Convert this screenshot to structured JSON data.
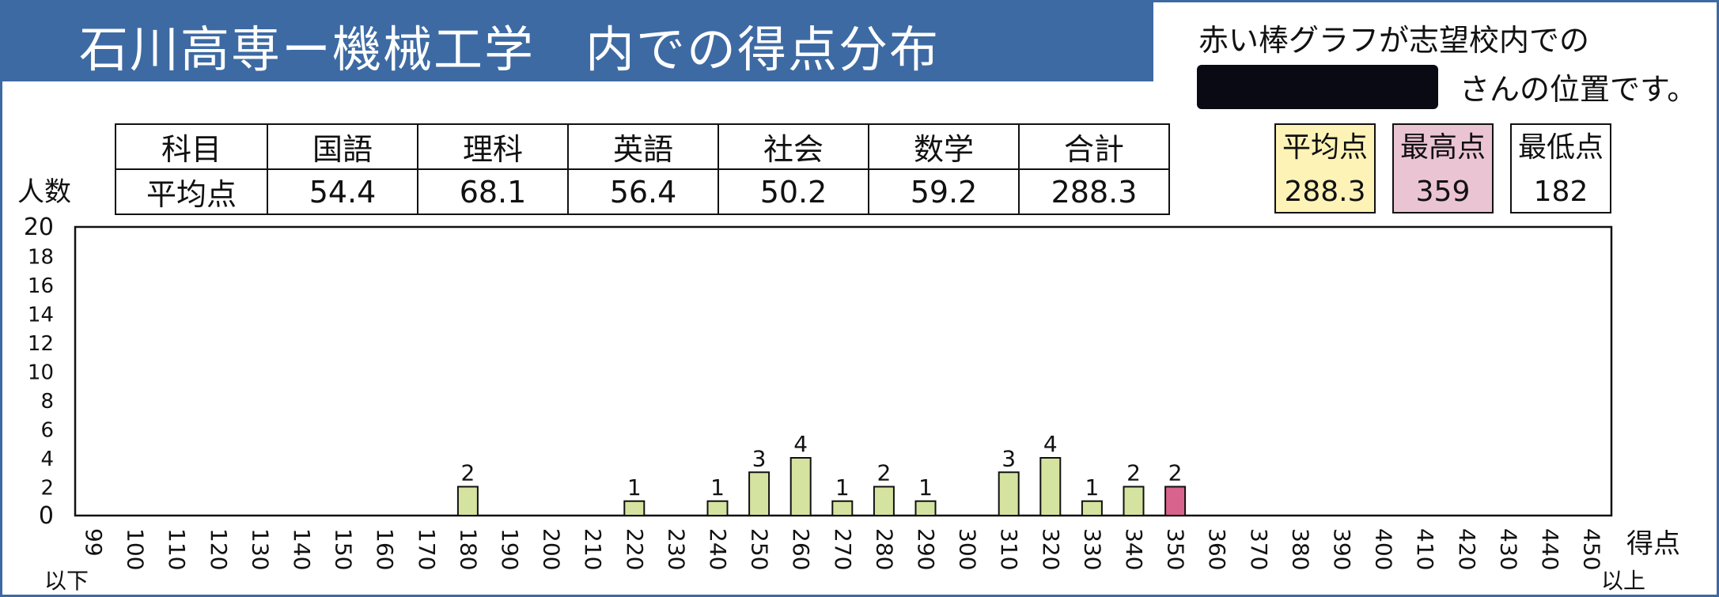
{
  "title": "石川高専ー機械工学　内での得点分布",
  "note": {
    "line1": "赤い棒グラフが志望校内での",
    "line2": "さんの位置です。"
  },
  "table": {
    "header": [
      "科目",
      "国語",
      "理科",
      "英語",
      "社会",
      "数学",
      "合計"
    ],
    "row": [
      "平均点",
      "54.4",
      "68.1",
      "56.4",
      "50.2",
      "59.2",
      "288.3"
    ]
  },
  "stats": [
    {
      "label": "平均点",
      "value": "288.3",
      "color": "#fdf3b6"
    },
    {
      "label": "最高点",
      "value": "359",
      "color": "#ebc4d4"
    },
    {
      "label": "最低点",
      "value": "182",
      "color": "#ffffff"
    }
  ],
  "chart_data": {
    "type": "bar",
    "ylabel": "人数",
    "xlabel": "得点",
    "x_below_label": "以下",
    "x_above_label": "以上",
    "ylim": [
      0,
      20
    ],
    "yticks": [
      "0",
      "2",
      "4",
      "6",
      "8",
      "10",
      "12",
      "14",
      "16",
      "18",
      "20"
    ],
    "categories": [
      "99",
      "100",
      "110",
      "120",
      "130",
      "140",
      "150",
      "160",
      "170",
      "180",
      "190",
      "200",
      "210",
      "220",
      "230",
      "240",
      "250",
      "260",
      "270",
      "280",
      "290",
      "300",
      "310",
      "320",
      "330",
      "340",
      "350",
      "360",
      "370",
      "380",
      "390",
      "400",
      "410",
      "420",
      "430",
      "440",
      "450"
    ],
    "values": [
      0,
      0,
      0,
      0,
      0,
      0,
      0,
      0,
      0,
      2,
      0,
      0,
      0,
      1,
      0,
      1,
      3,
      4,
      1,
      2,
      1,
      0,
      3,
      4,
      1,
      2,
      2,
      0,
      0,
      0,
      0,
      0,
      0,
      0,
      0,
      0,
      0
    ],
    "highlight_category": "350",
    "bar_color": "#d5e3a0",
    "highlight_color": "#d8638d"
  }
}
